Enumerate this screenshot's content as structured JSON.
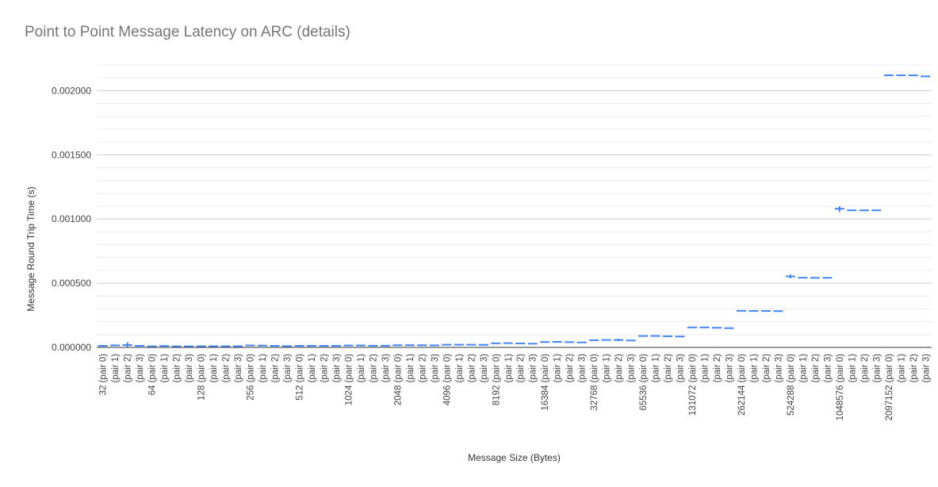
{
  "title": "Point to Point Message Latency on ARC (details)",
  "colors": {
    "series": "#4285f4",
    "grid_major": "#cccccc",
    "grid_minor": "#ececec",
    "axis": "#333333",
    "text": "#444444",
    "title": "#757575"
  },
  "chart_data": {
    "type": "candlestick",
    "title": "Point to Point Message Latency on ARC (details)",
    "xlabel": "Message Size (Bytes)",
    "ylabel": "Message Round Trip Time (s)",
    "ylim": [
      0,
      0.0022
    ],
    "yticks": [
      "0.000000",
      "0.000500",
      "0.001000",
      "0.001500",
      "0.002000"
    ],
    "grid": true,
    "legend": "none",
    "categories": [
      "32 (pair 0)",
      "(pair 1)",
      "(pair 2)",
      "(pair 3)",
      "64 (pair 0)",
      "(pair 1)",
      "(pair 2)",
      "(pair 3)",
      "128 (pair 0)",
      "(pair 1)",
      "(pair 2)",
      "(pair 3)",
      "256 (pair 0)",
      "(pair 1)",
      "(pair 2)",
      "(pair 3)",
      "512 (pair 0)",
      "(pair 1)",
      "(pair 2)",
      "(pair 3)",
      "1024 (pair 0)",
      "(pair 1)",
      "(pair 2)",
      "(pair 3)",
      "2048 (pair 0)",
      "(pair 1)",
      "(pair 2)",
      "(pair 3)",
      "4096 (pair 0)",
      "(pair 1)",
      "(pair 2)",
      "(pair 3)",
      "8192 (pair 0)",
      "(pair 1)",
      "(pair 2)",
      "(pair 3)",
      "16384 (pair 0)",
      "(pair 1)",
      "(pair 2)",
      "(pair 3)",
      "32768 (pair 0)",
      "(pair 1)",
      "(pair 2)",
      "(pair 3)",
      "65536 (pair 0)",
      "(pair 1)",
      "(pair 2)",
      "(pair 3)",
      "131072 (pair 0)",
      "(pair 1)",
      "(pair 2)",
      "(pair 3)",
      "262144 (pair 0)",
      "(pair 1)",
      "(pair 2)",
      "(pair 3)",
      "524288 (pair 0)",
      "(pair 1)",
      "(pair 2)",
      "(pair 3)",
      "1048576 (pair 0)",
      "(pair 1)",
      "(pair 2)",
      "(pair 3)",
      "2097152 (pair 0)",
      "(pair 1)",
      "(pair 2)",
      "(pair 3)"
    ],
    "values": [
      1.2e-05,
      1.6e-05,
      1.8e-05,
      1.2e-05,
      8e-06,
      1.1e-05,
      8e-06,
      8e-06,
      9e-06,
      9e-06,
      9e-06,
      9e-06,
      1.5e-05,
      1.4e-05,
      1.2e-05,
      1e-05,
      1.2e-05,
      1.2e-05,
      1.2e-05,
      1.2e-05,
      1.5e-05,
      1.5e-05,
      1.3e-05,
      1.3e-05,
      1.7e-05,
      1.7e-05,
      1.7e-05,
      1.6e-05,
      2.1e-05,
      2.1e-05,
      2.1e-05,
      2e-05,
      3.2e-05,
      3.3e-05,
      3.1e-05,
      2.9e-05,
      4.2e-05,
      4.3e-05,
      4.1e-05,
      3.9e-05,
      5.6e-05,
      5.8e-05,
      5.8e-05,
      5.4e-05,
      8.9e-05,
      8.9e-05,
      8.7e-05,
      8.5e-05,
      0.000156,
      0.000156,
      0.000153,
      0.00015,
      0.000285,
      0.000284,
      0.000284,
      0.000283,
      0.000553,
      0.000543,
      0.000542,
      0.000542,
      0.00108,
      0.001068,
      0.001068,
      0.001068,
      0.00212,
      0.00212,
      0.00212,
      0.002112
    ],
    "highs": [
      null,
      null,
      4e-05,
      null,
      null,
      null,
      null,
      null,
      null,
      null,
      null,
      null,
      null,
      null,
      null,
      null,
      null,
      null,
      null,
      null,
      null,
      null,
      null,
      null,
      null,
      null,
      null,
      null,
      null,
      null,
      null,
      null,
      null,
      null,
      null,
      null,
      null,
      null,
      null,
      null,
      null,
      null,
      6.8e-05,
      null,
      null,
      null,
      null,
      null,
      null,
      null,
      null,
      null,
      null,
      null,
      null,
      null,
      0.000568,
      null,
      null,
      null,
      0.0011,
      null,
      null,
      null,
      null,
      null,
      null,
      null
    ],
    "lows": [
      null,
      null,
      0.0,
      null,
      null,
      null,
      null,
      null,
      null,
      null,
      null,
      null,
      null,
      null,
      null,
      null,
      null,
      null,
      null,
      null,
      null,
      null,
      null,
      null,
      null,
      null,
      null,
      null,
      null,
      null,
      null,
      null,
      null,
      null,
      null,
      null,
      null,
      null,
      null,
      null,
      null,
      null,
      5e-05,
      null,
      null,
      null,
      null,
      null,
      null,
      null,
      null,
      null,
      null,
      null,
      null,
      null,
      0.000538,
      null,
      null,
      null,
      0.001055,
      null,
      null,
      null,
      null,
      null,
      null,
      null
    ]
  }
}
